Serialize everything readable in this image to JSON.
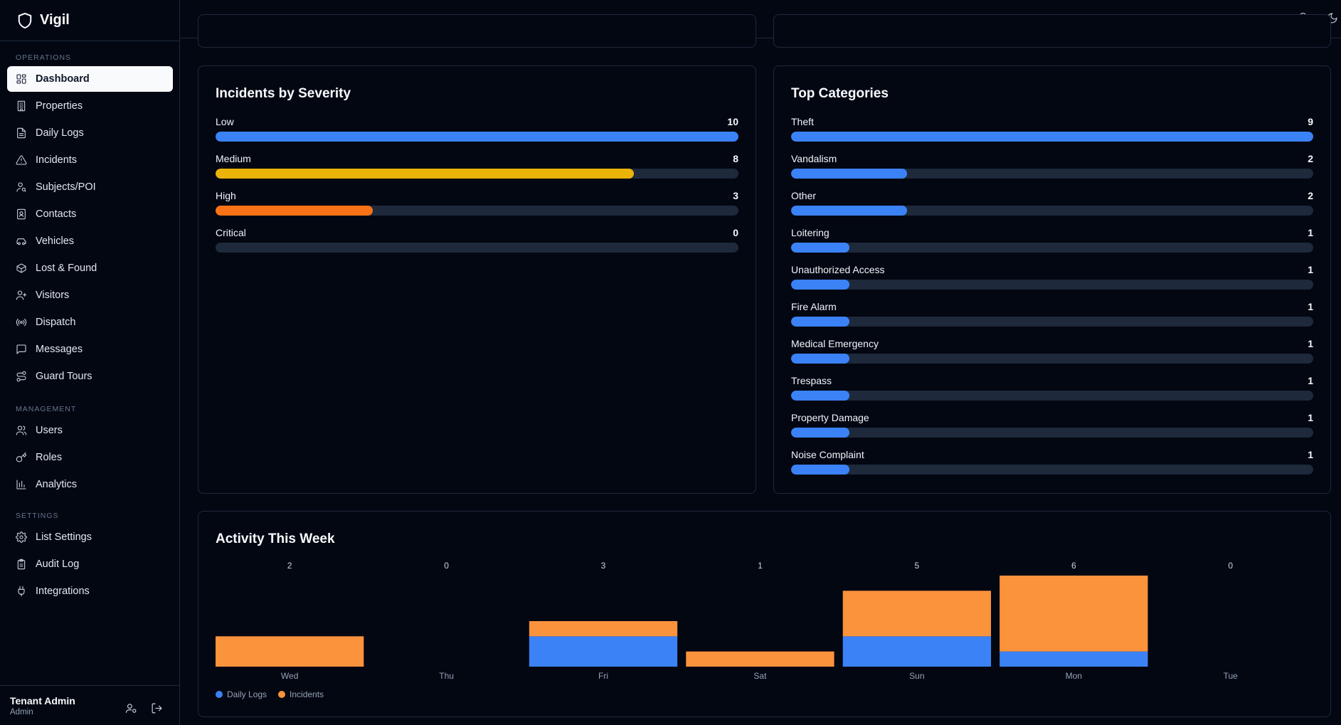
{
  "brand": {
    "name": "Vigil"
  },
  "sidebar": {
    "sections": [
      {
        "label": "OPERATIONS",
        "items": [
          {
            "label": "Dashboard",
            "icon": "dashboard-icon",
            "active": true
          },
          {
            "label": "Properties",
            "icon": "building-icon"
          },
          {
            "label": "Daily Logs",
            "icon": "file-text-icon"
          },
          {
            "label": "Incidents",
            "icon": "alert-triangle-icon"
          },
          {
            "label": "Subjects/POI",
            "icon": "user-search-icon"
          },
          {
            "label": "Contacts",
            "icon": "contact-icon"
          },
          {
            "label": "Vehicles",
            "icon": "car-icon"
          },
          {
            "label": "Lost & Found",
            "icon": "package-icon"
          },
          {
            "label": "Visitors",
            "icon": "user-plus-icon"
          },
          {
            "label": "Dispatch",
            "icon": "radio-icon"
          },
          {
            "label": "Messages",
            "icon": "message-icon"
          },
          {
            "label": "Guard Tours",
            "icon": "route-icon"
          }
        ]
      },
      {
        "label": "MANAGEMENT",
        "items": [
          {
            "label": "Users",
            "icon": "users-icon"
          },
          {
            "label": "Roles",
            "icon": "key-icon"
          },
          {
            "label": "Analytics",
            "icon": "bar-chart-icon"
          }
        ]
      },
      {
        "label": "SETTINGS",
        "items": [
          {
            "label": "List Settings",
            "icon": "gear-icon"
          },
          {
            "label": "Audit Log",
            "icon": "clipboard-icon"
          },
          {
            "label": "Integrations",
            "icon": "plug-icon"
          }
        ]
      }
    ]
  },
  "user": {
    "name": "Tenant Admin",
    "role": "Admin"
  },
  "colors": {
    "blue": "#3b82f6",
    "yellow": "#eab308",
    "orange": "#f97316",
    "orange_light": "#fb923c",
    "track": "#1e293b"
  },
  "severity": {
    "title": "Incidents by Severity",
    "max": 10,
    "items": [
      {
        "label": "Low",
        "count": 10,
        "color": "#3b82f6"
      },
      {
        "label": "Medium",
        "count": 8,
        "color": "#eab308"
      },
      {
        "label": "High",
        "count": 3,
        "color": "#f97316"
      },
      {
        "label": "Critical",
        "count": 0,
        "color": "#ef4444"
      }
    ]
  },
  "categories": {
    "title": "Top Categories",
    "max": 9,
    "items": [
      {
        "label": "Theft",
        "count": 9
      },
      {
        "label": "Vandalism",
        "count": 2
      },
      {
        "label": "Other",
        "count": 2
      },
      {
        "label": "Loitering",
        "count": 1
      },
      {
        "label": "Unauthorized Access",
        "count": 1
      },
      {
        "label": "Fire Alarm",
        "count": 1
      },
      {
        "label": "Medical Emergency",
        "count": 1
      },
      {
        "label": "Trespass",
        "count": 1
      },
      {
        "label": "Property Damage",
        "count": 1
      },
      {
        "label": "Noise Complaint",
        "count": 1
      }
    ]
  },
  "activity": {
    "title": "Activity This Week",
    "legend": {
      "daily_logs": "Daily Logs",
      "incidents": "Incidents"
    }
  },
  "chart_data": {
    "type": "bar",
    "stacked": true,
    "categories": [
      "Wed",
      "Thu",
      "Fri",
      "Sat",
      "Sun",
      "Mon",
      "Tue"
    ],
    "series": [
      {
        "name": "Daily Logs",
        "values": [
          0,
          0,
          2,
          0,
          2,
          1,
          0
        ],
        "color": "#3b82f6"
      },
      {
        "name": "Incidents",
        "values": [
          2,
          0,
          1,
          1,
          3,
          5,
          0
        ],
        "color": "#fb923c"
      }
    ],
    "totals": [
      2,
      0,
      3,
      1,
      5,
      6,
      0
    ],
    "legend_position": "bottom-left",
    "grid": false
  }
}
